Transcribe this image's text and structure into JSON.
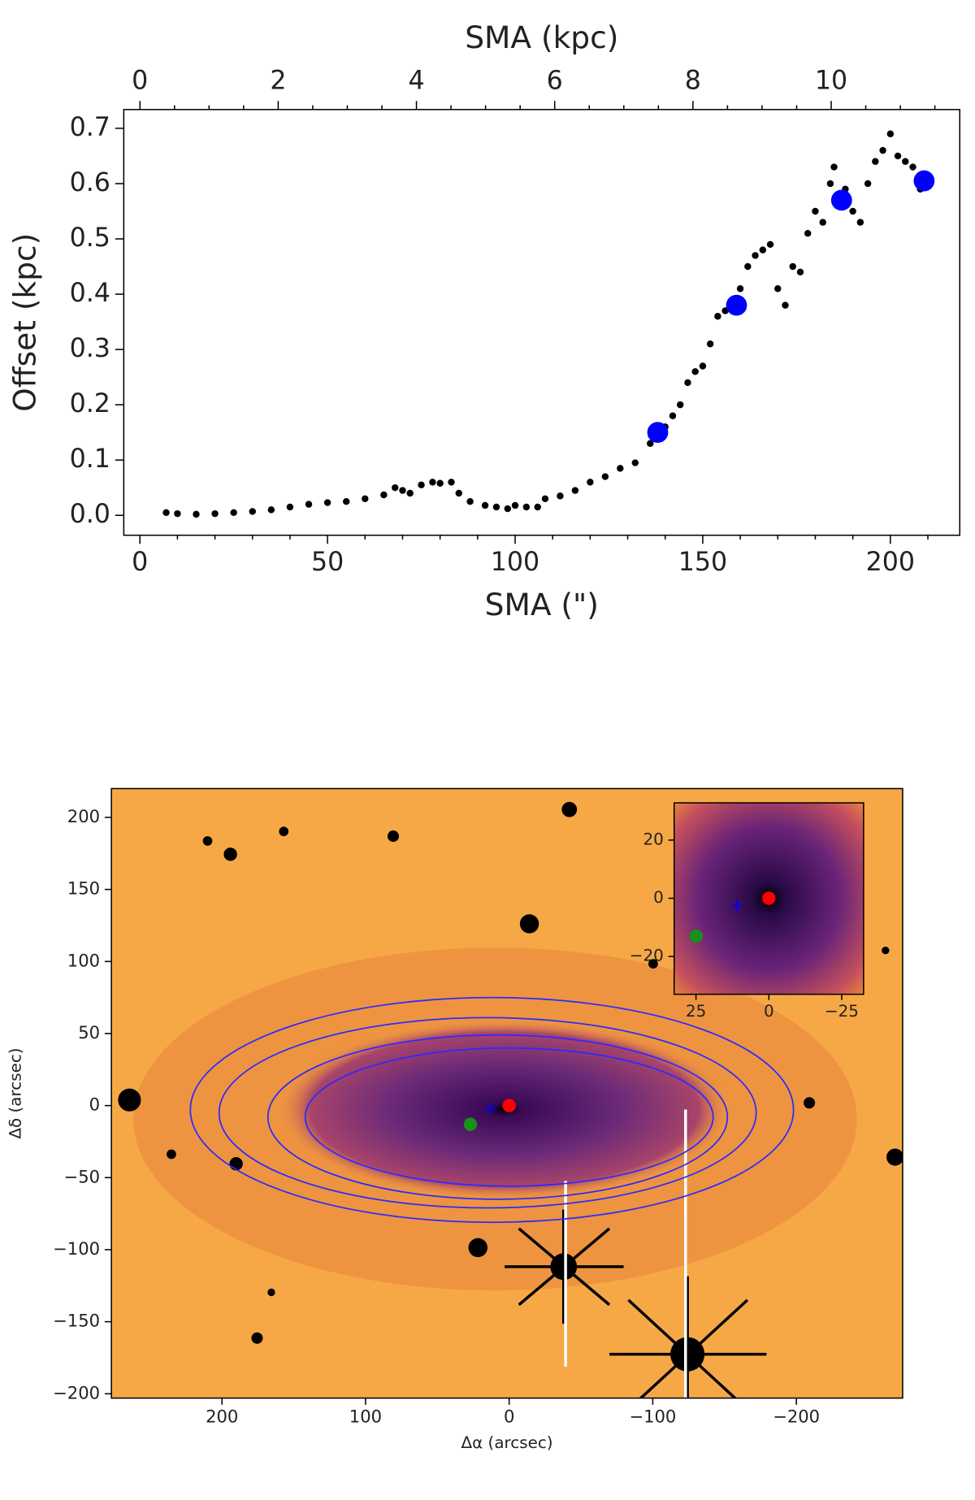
{
  "chart_data": [
    {
      "type": "scatter",
      "x_label": "SMA (\")",
      "x2_label": "SMA (kpc)",
      "y_label": "Offset (kpc)",
      "xlim": [
        -4.3,
        218.5
      ],
      "xticks": [
        0,
        50,
        100,
        150,
        200
      ],
      "xminorticks": [
        10,
        20,
        30,
        40,
        60,
        70,
        80,
        90,
        110,
        120,
        130,
        140,
        160,
        170,
        180,
        190,
        210
      ],
      "x2lim": [
        -0.234,
        11.86
      ],
      "x2ticks": [
        0,
        2,
        4,
        6,
        8,
        10
      ],
      "x2minorticks": [
        0.5,
        1,
        1.5,
        2.5,
        3,
        3.5,
        4.5,
        5,
        5.5,
        6.5,
        7,
        7.5,
        8.5,
        9,
        9.5,
        10.5,
        11,
        11.5
      ],
      "ylim": [
        -0.036,
        0.734
      ],
      "yticks": [
        {
          "value": 0,
          "label": "0.0"
        },
        0.1,
        0.2,
        0.3,
        0.4,
        0.5,
        0.6,
        0.7
      ],
      "series": [
        {
          "color": "#000000",
          "x": [
            7,
            10,
            15,
            20,
            25,
            30,
            35,
            40,
            45,
            50,
            55,
            60,
            65,
            68,
            70,
            72,
            75,
            78,
            80,
            83,
            85,
            88,
            92,
            95,
            98,
            100,
            103,
            106,
            108,
            112,
            116,
            120,
            124,
            128,
            132,
            136,
            140,
            142,
            144,
            146,
            148,
            150,
            152,
            154,
            156,
            158,
            160,
            162,
            164,
            166,
            168,
            170,
            172,
            174,
            176,
            178,
            180,
            182,
            184,
            185,
            188,
            190,
            192,
            194,
            196,
            198,
            200,
            202,
            204,
            206,
            208
          ],
          "values": [
            0.005,
            0.003,
            0.002,
            0.003,
            0.005,
            0.007,
            0.01,
            0.015,
            0.02,
            0.023,
            0.025,
            0.03,
            0.037,
            0.05,
            0.045,
            0.04,
            0.055,
            0.06,
            0.058,
            0.06,
            0.04,
            0.025,
            0.018,
            0.015,
            0.012,
            0.018,
            0.015,
            0.015,
            0.03,
            0.035,
            0.045,
            0.06,
            0.07,
            0.085,
            0.095,
            0.13,
            0.16,
            0.18,
            0.2,
            0.24,
            0.26,
            0.27,
            0.31,
            0.36,
            0.37,
            0.38,
            0.41,
            0.45,
            0.47,
            0.48,
            0.49,
            0.41,
            0.38,
            0.45,
            0.44,
            0.51,
            0.55,
            0.53,
            0.6,
            0.63,
            0.59,
            0.55,
            0.53,
            0.6,
            0.64,
            0.66,
            0.69,
            0.65,
            0.64,
            0.63,
            0.59
          ]
        },
        {
          "color": "#0000ff",
          "x": [
            138,
            159,
            187,
            209
          ],
          "values": [
            0.15,
            0.38,
            0.57,
            0.605
          ]
        }
      ]
    },
    {
      "type": "image",
      "x_label": "Δα (arcsec)",
      "y_label": "Δδ (arcsec)",
      "xlim": [
        277,
        -274
      ],
      "xticks": [
        200,
        100,
        0,
        {
          "value": -100,
          "label": "−100"
        },
        {
          "value": -200,
          "label": "−200"
        }
      ],
      "ylim": [
        -203,
        220
      ],
      "yticks": [
        {
          "value": -200,
          "label": "−200"
        },
        {
          "value": -150,
          "label": "−150"
        },
        {
          "value": -100,
          "label": "−100"
        },
        {
          "value": -50,
          "label": "−50"
        },
        0,
        50,
        100,
        150,
        200
      ],
      "ellipse_color": "#2b2bff",
      "ellipses": [
        {
          "cx": 12,
          "cy": -3,
          "a": 210,
          "b": 78
        },
        {
          "cx": 15,
          "cy": -5,
          "a": 187,
          "b": 66
        },
        {
          "cx": 8,
          "cy": -8,
          "a": 160,
          "b": 57
        },
        {
          "cx": 0,
          "cy": -8,
          "a": 142,
          "b": 48
        }
      ],
      "points": [
        {
          "marker": "o",
          "color": "#ff0000",
          "x": 0,
          "y": 0
        },
        {
          "marker": "+",
          "color": "#0000ff",
          "x": 13,
          "y": -2
        },
        {
          "marker": "o",
          "color": "#1a8f1a",
          "x": 27,
          "y": -13
        }
      ]
    },
    {
      "type": "image",
      "xlim": [
        32.5,
        -32.5
      ],
      "xticks": [
        25,
        0,
        {
          "value": -25,
          "label": "−25"
        }
      ],
      "ylim": [
        -33,
        32.8
      ],
      "yticks": [
        {
          "value": -20,
          "label": "−20"
        },
        0,
        20
      ],
      "points": [
        {
          "marker": "o",
          "color": "#ff0000",
          "x": 0,
          "y": 0
        },
        {
          "marker": "+",
          "color": "#0000ff",
          "x": 11,
          "y": -2.5
        },
        {
          "marker": "o",
          "color": "#1a8f1a",
          "x": 25,
          "y": -13
        }
      ]
    }
  ]
}
